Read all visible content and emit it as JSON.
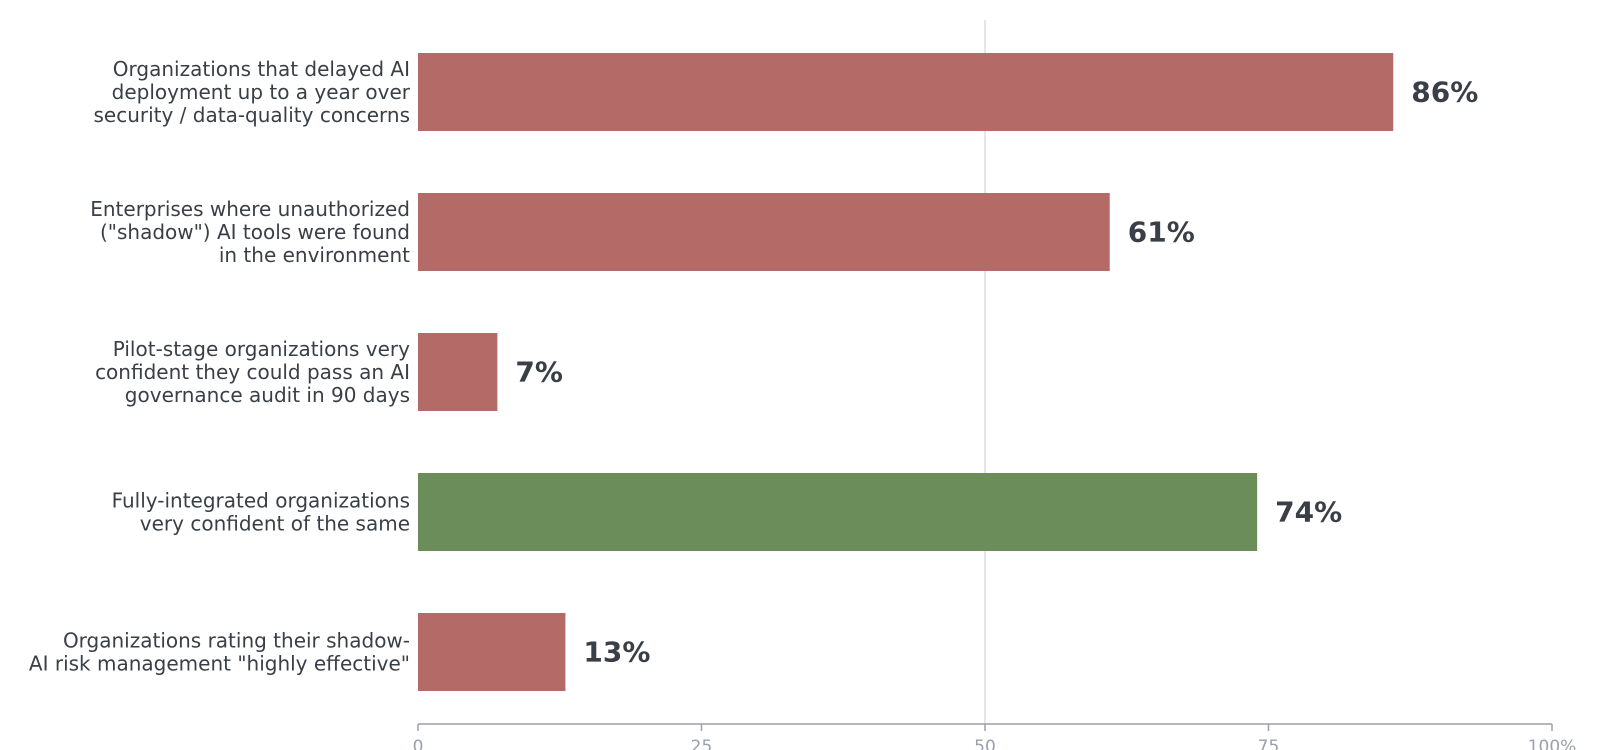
{
  "chart_data": {
    "type": "bar",
    "orientation": "horizontal",
    "title": "",
    "xlabel": "",
    "ylabel": "",
    "xlim": [
      0,
      100
    ],
    "ticks": [
      0,
      25,
      50,
      75,
      100
    ],
    "tick_labels": [
      "0",
      "25",
      "50",
      "75",
      "100%"
    ],
    "reference_line": 50,
    "grid": false,
    "categories": [
      "Organizations that delayed AI deployment up to a year over security / data-quality concerns",
      "Enterprises where unauthorized (\"shadow\") AI tools were found in the environment",
      "Pilot-stage organizations very confident they could pass an AI governance audit in 90 days",
      "Fully-integrated organizations very confident of the same",
      "Organizations rating their shadow-AI risk management \"highly effective\""
    ],
    "category_lines": [
      [
        "Organizations that delayed AI",
        "deployment up to a year over",
        "security / data-quality concerns"
      ],
      [
        "Enterprises where unauthorized",
        "(\"shadow\") AI tools were found",
        "in the environment"
      ],
      [
        "Pilot-stage organizations very",
        "confident they could pass an AI",
        "governance audit in 90 days"
      ],
      [
        "Fully-integrated organizations",
        "very confident of the same"
      ],
      [
        "Organizations rating their shadow-",
        "AI risk management \"highly effective\""
      ]
    ],
    "values": [
      86,
      61,
      7,
      74,
      13
    ],
    "value_labels": [
      "86%",
      "61%",
      "7%",
      "74%",
      "13%"
    ],
    "bar_colors": [
      "#b46a67",
      "#b46a67",
      "#b46a67",
      "#6b8d5a",
      "#b46a67"
    ],
    "colors": {
      "risk": "#b46a67",
      "positive": "#6b8d5a",
      "text": "#3a3f47",
      "axis": "#9aa1ab",
      "reference": "#dcdde3"
    }
  }
}
